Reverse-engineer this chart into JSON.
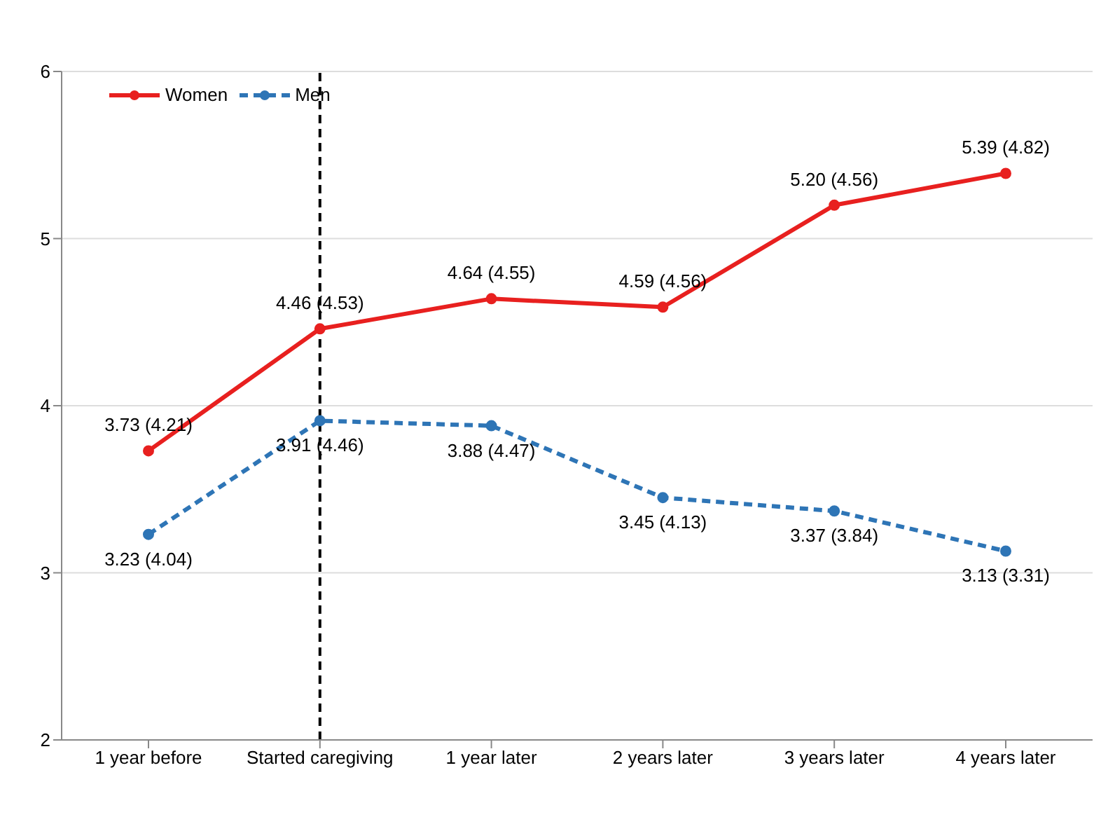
{
  "chart_data": {
    "type": "line",
    "categories": [
      "1 year before",
      "Started caregiving",
      "1 year later",
      "2 years later",
      "3 years later",
      "4 years later"
    ],
    "series": [
      {
        "name": "Women",
        "color": "#e8201f",
        "line_style": "solid",
        "values": [
          3.73,
          4.46,
          4.64,
          4.59,
          5.2,
          5.39
        ],
        "value_labels": [
          "3.73 (4.21)",
          "4.46 (4.53)",
          "4.64 (4.55)",
          "4.59 (4.56)",
          "5.20 (4.56)",
          "5.39 (4.82)"
        ]
      },
      {
        "name": "Men",
        "color": "#2e75b6",
        "line_style": "dashed",
        "values": [
          3.23,
          3.91,
          3.88,
          3.45,
          3.37,
          3.13
        ],
        "value_labels": [
          "3.23 (4.04)",
          "3.91 (4.46)",
          "3.88 (4.47)",
          "3.45 (4.13)",
          "3.37 (3.84)",
          "3.13 (3.31)"
        ]
      }
    ],
    "ylim": [
      2,
      6
    ],
    "yticks": [
      2,
      3,
      4,
      5,
      6
    ],
    "grid": "y",
    "legend": "top left",
    "marker": "circle",
    "ref_lines": [
      {
        "axis": "x",
        "value": "Started caregiving",
        "color": "#000000",
        "line_style": "dashed"
      }
    ]
  }
}
